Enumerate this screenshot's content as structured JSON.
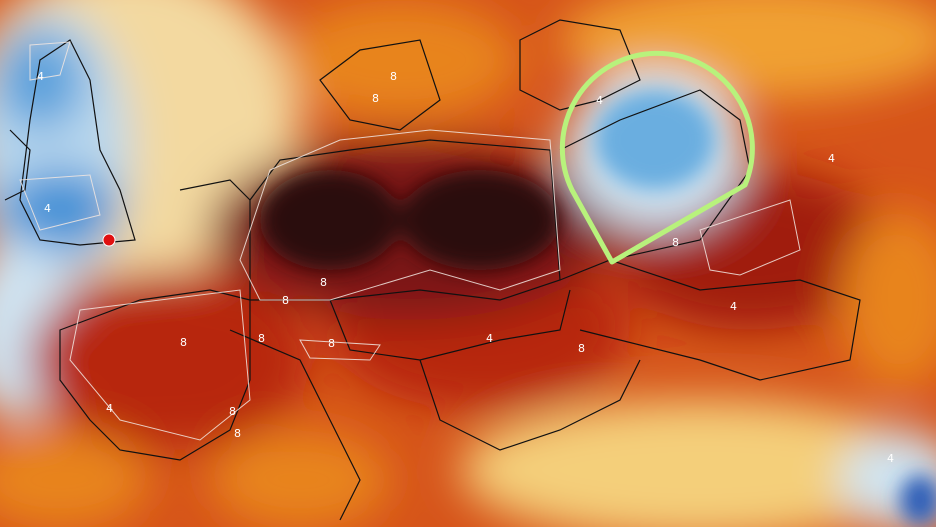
{
  "map": {
    "contour_labels": {
      "low": "4",
      "high": "8"
    },
    "colors": {
      "extreme_heat": "#2a0f10",
      "very_hot": "#7a1212",
      "hot": "#c8310f",
      "warm": "#e8841e",
      "mild": "#f4cf7a",
      "cool": "#cfe4f2",
      "cold": "#3d8fd6",
      "highlight_marker": "#b8f27c",
      "location_dot": "#e01010"
    },
    "highlight_marker_icon": "map-pin-outline",
    "location_dot_icon": "red-dot"
  }
}
